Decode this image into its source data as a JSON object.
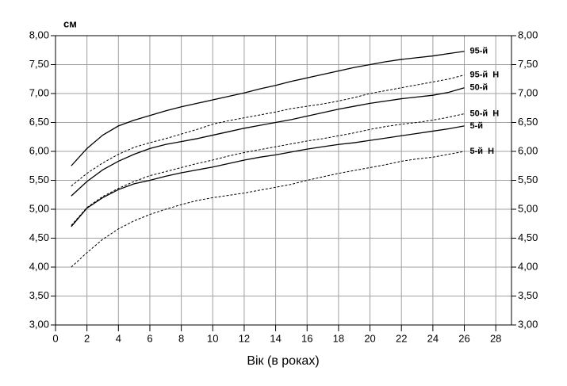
{
  "chart_data": {
    "type": "line",
    "unit_label": "см",
    "x_label": "Вік (в роках)",
    "x": [
      1,
      2,
      3,
      4,
      5,
      6,
      7,
      8,
      9,
      10,
      11,
      12,
      13,
      14,
      15,
      16,
      17,
      18,
      19,
      20,
      21,
      22,
      23,
      24,
      25,
      26
    ],
    "series": [
      {
        "name": "95-й",
        "color": "#000000",
        "dashed": false,
        "values": [
          5.75,
          6.05,
          6.28,
          6.44,
          6.54,
          6.62,
          6.7,
          6.77,
          6.83,
          6.89,
          6.95,
          7.01,
          7.08,
          7.14,
          7.21,
          7.27,
          7.33,
          7.39,
          7.45,
          7.5,
          7.55,
          7.59,
          7.62,
          7.65,
          7.69,
          7.73
        ]
      },
      {
        "name": "95-й  Н",
        "color": "#000000",
        "dashed": true,
        "values": [
          5.4,
          5.62,
          5.8,
          5.95,
          6.07,
          6.15,
          6.22,
          6.3,
          6.38,
          6.47,
          6.53,
          6.58,
          6.63,
          6.68,
          6.74,
          6.78,
          6.82,
          6.87,
          6.93,
          7.0,
          7.05,
          7.1,
          7.15,
          7.2,
          7.25,
          7.32
        ]
      },
      {
        "name": "50-й",
        "color": "#000000",
        "dashed": false,
        "values": [
          5.23,
          5.48,
          5.68,
          5.83,
          5.95,
          6.05,
          6.12,
          6.17,
          6.22,
          6.28,
          6.34,
          6.4,
          6.45,
          6.5,
          6.55,
          6.61,
          6.67,
          6.73,
          6.78,
          6.83,
          6.87,
          6.91,
          6.94,
          6.97,
          7.02,
          7.1
        ]
      },
      {
        "name": "50-й  Н",
        "color": "#000000",
        "dashed": true,
        "values": [
          4.72,
          5.03,
          5.22,
          5.36,
          5.48,
          5.58,
          5.65,
          5.72,
          5.79,
          5.85,
          5.92,
          5.98,
          6.03,
          6.08,
          6.13,
          6.18,
          6.22,
          6.27,
          6.32,
          6.38,
          6.43,
          6.47,
          6.5,
          6.54,
          6.59,
          6.65
        ]
      },
      {
        "name": "5-й",
        "color": "#000000",
        "dashed": false,
        "values": [
          4.7,
          5.02,
          5.2,
          5.34,
          5.44,
          5.5,
          5.57,
          5.63,
          5.68,
          5.73,
          5.79,
          5.85,
          5.9,
          5.94,
          5.99,
          6.04,
          6.08,
          6.12,
          6.15,
          6.19,
          6.23,
          6.27,
          6.31,
          6.35,
          6.39,
          6.44
        ]
      },
      {
        "name": "5-й  Н",
        "color": "#000000",
        "dashed": true,
        "values": [
          4.0,
          4.25,
          4.48,
          4.66,
          4.8,
          4.91,
          5.0,
          5.08,
          5.15,
          5.2,
          5.24,
          5.28,
          5.33,
          5.38,
          5.43,
          5.5,
          5.56,
          5.62,
          5.67,
          5.72,
          5.77,
          5.83,
          5.87,
          5.9,
          5.95,
          6.0
        ]
      }
    ],
    "xlim": [
      0,
      29
    ],
    "xticks": [
      0,
      2,
      4,
      6,
      8,
      10,
      12,
      14,
      16,
      18,
      20,
      22,
      24,
      26,
      28
    ],
    "ylim": [
      3,
      8
    ],
    "yticks": [
      {
        "value": 3,
        "label": "3,00"
      },
      {
        "value": 3.5,
        "label": "3,50"
      },
      {
        "value": 4,
        "label": "4,00"
      },
      {
        "value": 4.5,
        "label": "4,50"
      },
      {
        "value": 5,
        "label": "5,00"
      },
      {
        "value": 5.5,
        "label": "5,50"
      },
      {
        "value": 6,
        "label": "6,00"
      },
      {
        "value": 6.5,
        "label": "6,50"
      },
      {
        "value": 7,
        "label": "7,00"
      },
      {
        "value": 7.5,
        "label": "7,50"
      },
      {
        "value": 8,
        "label": "8,00"
      }
    ],
    "grid": true
  }
}
